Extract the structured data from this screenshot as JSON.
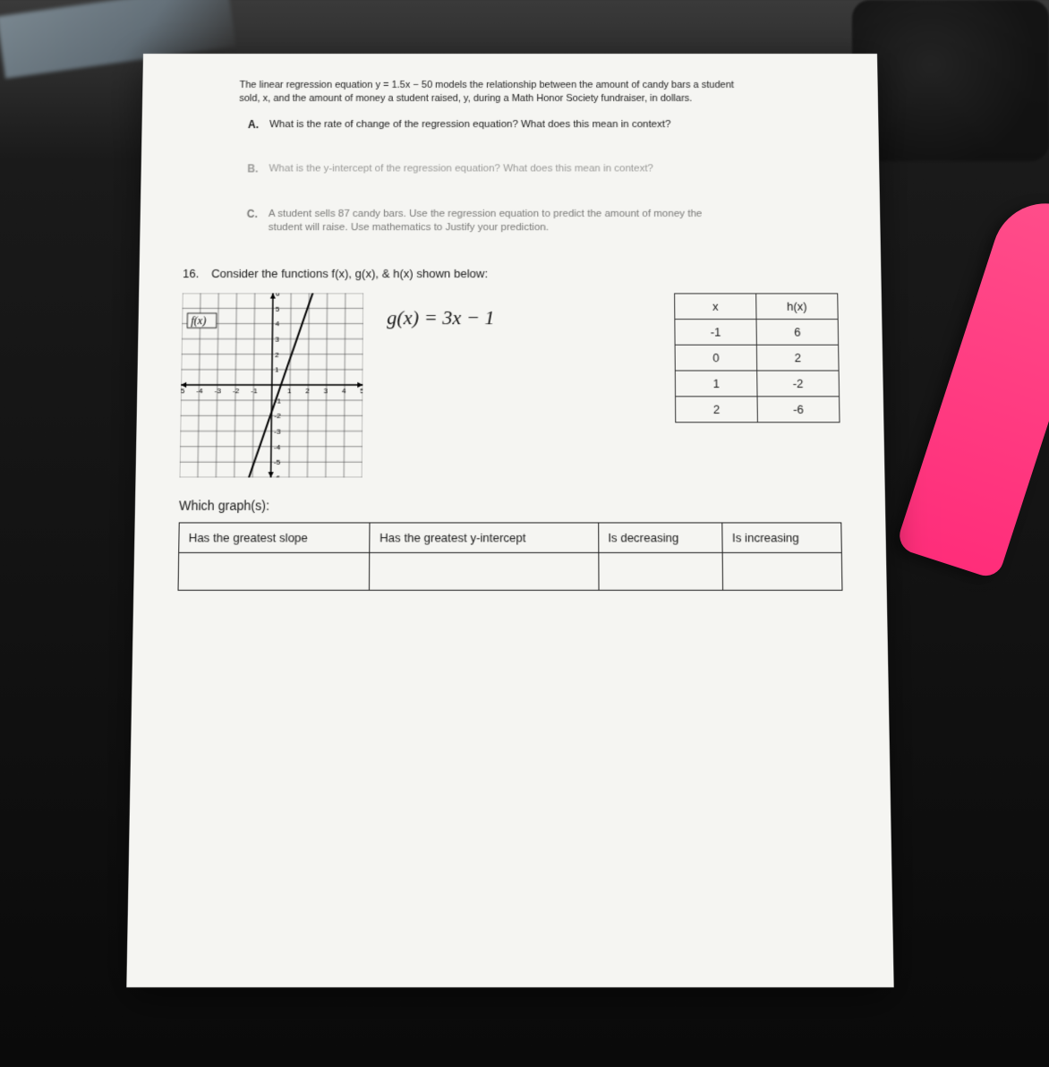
{
  "problem_intro": {
    "text": "The linear regression equation y = 1.5x − 50 models the relationship between the amount of candy bars a student sold, x, and the amount of money a student raised, y, during a Math Honor Society fundraiser, in dollars."
  },
  "sub_questions": [
    {
      "letter": "A.",
      "text": "What is the rate of change of the regression equation? What does this mean in context?",
      "fade": "normal"
    },
    {
      "letter": "B.",
      "text": "What is the y-intercept of the regression equation? What does this mean in context?",
      "fade": "faded"
    },
    {
      "letter": "C.",
      "text": "A student sells 87 candy bars. Use the regression equation to predict the amount of money the student will raise. Use mathematics to Justify your prediction.",
      "fade": "semi"
    }
  ],
  "q16": {
    "number": "16.",
    "prompt": "Consider the functions f(x), g(x), & h(x) shown below:",
    "g_equation": "g(x) = 3x − 1",
    "f_label": "f(x)",
    "which_label": "Which graph(s):",
    "chart": {
      "xlim": [
        -5,
        5
      ],
      "ylim": [
        -6,
        6
      ],
      "xticks": [
        -5,
        -4,
        -3,
        -2,
        -1,
        0,
        1,
        2,
        3,
        4,
        5
      ],
      "yticks": [
        -6,
        -5,
        -4,
        -3,
        -2,
        -1,
        0,
        1,
        2,
        3,
        4,
        5,
        6
      ],
      "line_points": [
        [
          -1.2,
          -6
        ],
        [
          2.2,
          6
        ]
      ],
      "grid_color": "#4a4a4a",
      "axis_color": "#000000",
      "line_color": "#000000",
      "background_color": "#f5f5f2"
    },
    "h_table": {
      "headers": [
        "x",
        "h(x)"
      ],
      "rows": [
        [
          "-1",
          "6"
        ],
        [
          "0",
          "2"
        ],
        [
          "1",
          "-2"
        ],
        [
          "2",
          "-6"
        ]
      ]
    },
    "answer_headers": [
      "Has the greatest slope",
      "Has the greatest y-intercept",
      "Is decreasing",
      "Is increasing"
    ]
  },
  "colors": {
    "paper": "#f5f5f2",
    "text": "#1a1a1a",
    "pen": "#ff2d7a"
  }
}
